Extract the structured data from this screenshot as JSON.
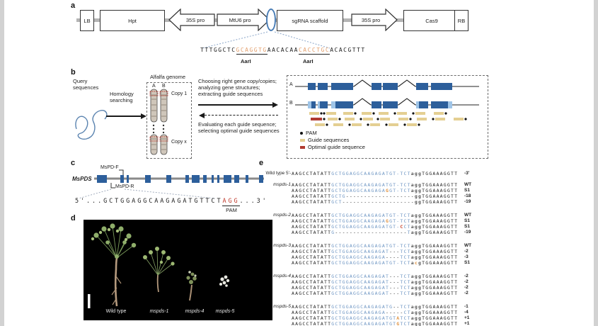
{
  "panel_a": {
    "label": "a",
    "elements": {
      "lb": "LB",
      "hpt": "Hpt",
      "p35s_left": "35S pro",
      "mtu6": "MtU6 pro",
      "sgrna": "sgRNA scaffold",
      "p35s_right": "35S pro",
      "cas9": "Cas9",
      "rb": "RB"
    },
    "sequence": [
      [
        "TTTGGCTC",
        "k"
      ],
      [
        "GCAGGTG",
        "ao",
        true
      ],
      [
        "AACACAA",
        "k"
      ],
      [
        "CACCTGC",
        "ao",
        true
      ],
      [
        "ACACGTTT",
        "k"
      ]
    ],
    "enzymes": [
      "AarI",
      "AarI"
    ]
  },
  "panel_b": {
    "label": "b",
    "query_label": [
      "Query",
      "sequences"
    ],
    "homology_label": [
      "Homology",
      "searching"
    ],
    "genome_title": "Alfalfa genome",
    "chrom_labels": [
      "A",
      "B"
    ],
    "copy1": "Copy 1",
    "copyx": "Copy x",
    "forward_text": [
      "Choosing right gene copy/copies;",
      "analyzing gene structures;",
      "extracting guide sequences"
    ],
    "back_text": [
      "Evaluating each guide sequence;",
      "selecting optimal guide sequences"
    ],
    "gene_labels": [
      "A",
      "B"
    ],
    "legend": [
      "PAM",
      "Guide sequences",
      "Optimal guide sequence"
    ]
  },
  "panel_c": {
    "label": "c",
    "gene_name": "MsPDS",
    "primer_f": "MsPD-F",
    "primer_r": "MsPD-R",
    "sequence": [
      [
        "5'...",
        "k"
      ],
      [
        "GCTGGAGGCAAGAGATGTTCT",
        "k"
      ],
      [
        "AGG",
        "cr",
        true
      ],
      [
        "...3'",
        "k"
      ]
    ],
    "pam_label": "PAM"
  },
  "panel_d": {
    "label": "d",
    "plants": [
      "Wild type",
      "mspds-1",
      "mspds-4",
      "mspds-5"
    ]
  },
  "panel_e": {
    "label": "e",
    "wild_type": {
      "label": "Wild type 5'-",
      "seq": [
        [
          "AAGCCTATATT",
          "k"
        ],
        [
          "GCTGGAGGCAAGAGATGT-TCT",
          "g"
        ],
        [
          "agg",
          "p"
        ],
        [
          "TGGAAAGGTT",
          "k"
        ]
      ],
      "tag": "-3'"
    },
    "groups": [
      {
        "name": "mspds-1",
        "rows": [
          {
            "seq": [
              [
                "AAGCCTATATT",
                "k"
              ],
              [
                "GCTGGAGGCAAGAGATGT-TCT",
                "g"
              ],
              [
                "agg",
                "p"
              ],
              [
                "TGGAAAGGTT",
                "k"
              ]
            ],
            "tag": "WT"
          },
          {
            "seq": [
              [
                "AAGCCTATATT",
                "k"
              ],
              [
                "GCTGGAGGCAAGAGA",
                "g"
              ],
              [
                "G",
                "o"
              ],
              [
                "GT-TCT",
                "g"
              ],
              [
                "agg",
                "p"
              ],
              [
                "TGGAAAGGTT",
                "k"
              ]
            ],
            "tag": "S1"
          },
          {
            "seq": [
              [
                "AAGCCTATATT",
                "k"
              ],
              [
                "GCTG",
                "g"
              ],
              [
                "-------------------",
                "d"
              ],
              [
                "gg",
                "p"
              ],
              [
                "TGGAAAGGTT",
                "k"
              ]
            ],
            "tag": "-18"
          },
          {
            "seq": [
              [
                "AAGCCTATATT",
                "k"
              ],
              [
                "GCT",
                "g"
              ],
              [
                "--------------------",
                "d"
              ],
              [
                "gg",
                "p"
              ],
              [
                "TGGAAAGGTT",
                "k"
              ]
            ],
            "tag": "-19"
          }
        ]
      },
      {
        "name": "mspds-2",
        "rows": [
          {
            "seq": [
              [
                "AAGCCTATATT",
                "k"
              ],
              [
                "GCTGGAGGCAAGAGATGT-TCT",
                "g"
              ],
              [
                "agg",
                "p"
              ],
              [
                "TGGAAAGGTT",
                "k"
              ]
            ],
            "tag": "WT"
          },
          {
            "seq": [
              [
                "AAGCCTATATT",
                "k"
              ],
              [
                "GCTGGAGGCAAGAGA",
                "g"
              ],
              [
                "G",
                "o"
              ],
              [
                "GT-TCT",
                "g"
              ],
              [
                "agg",
                "p"
              ],
              [
                "TGGAAAGGTT",
                "k"
              ]
            ],
            "tag": "S1"
          },
          {
            "seq": [
              [
                "AAGCCTATATT",
                "k"
              ],
              [
                "GCTGGAGGCAAGAGATGT-",
                "g"
              ],
              [
                "C",
                "r"
              ],
              [
                "CT",
                "g"
              ],
              [
                "agg",
                "p"
              ],
              [
                "TGGAAAGGTT",
                "k"
              ]
            ],
            "tag": "S1"
          },
          {
            "seq": [
              [
                "AAGCCTATATT",
                "k"
              ],
              [
                "G",
                "g"
              ],
              [
                "--------------------",
                "d"
              ],
              [
                "T",
                "g"
              ],
              [
                "agg",
                "p"
              ],
              [
                "TGGAAAGGTT",
                "k"
              ]
            ],
            "tag": "-19"
          }
        ]
      },
      {
        "name": "mspds-3",
        "rows": [
          {
            "seq": [
              [
                "AAGCCTATATT",
                "k"
              ],
              [
                "GCTGGAGGCAAGAGATGT-TCT",
                "g"
              ],
              [
                "agg",
                "p"
              ],
              [
                "TGGAAAGGTT",
                "k"
              ]
            ],
            "tag": "WT"
          },
          {
            "seq": [
              [
                "AAGCCTATATT",
                "k"
              ],
              [
                "GCTGGAGGCAAGAGAT",
                "g"
              ],
              [
                "---",
                "d"
              ],
              [
                "TCT",
                "g"
              ],
              [
                "agg",
                "p"
              ],
              [
                "TGGAAAGGTT",
                "k"
              ]
            ],
            "tag": "-2"
          },
          {
            "seq": [
              [
                "AAGCCTATATT",
                "k"
              ],
              [
                "GCTGGAGGCAAGAGA",
                "g"
              ],
              [
                "----",
                "d"
              ],
              [
                "TCT",
                "g"
              ],
              [
                "agg",
                "p"
              ],
              [
                "TGGAAAGGTT",
                "k"
              ]
            ],
            "tag": "-3"
          },
          {
            "seq": [
              [
                "AAGCCTATATT",
                "k"
              ],
              [
                "GCTGGAGGCAAGAGATGT-TCT",
                "g"
              ],
              [
                "a",
                "p"
              ],
              [
                "c",
                "o"
              ],
              [
                "g",
                "p"
              ],
              [
                "TGGAAAGGTT",
                "k"
              ]
            ],
            "tag": "S1"
          }
        ]
      },
      {
        "name": "mspds-4",
        "rows": [
          {
            "seq": [
              [
                "AAGCCTATATT",
                "k"
              ],
              [
                "GCTGGAGGCAAGAGAT",
                "g"
              ],
              [
                "---",
                "d"
              ],
              [
                "TCT",
                "g"
              ],
              [
                "agg",
                "p"
              ],
              [
                "TGGAAAGGTT",
                "k"
              ]
            ],
            "tag": "-2"
          },
          {
            "seq": [
              [
                "AAGCCTATATT",
                "k"
              ],
              [
                "GCTGGAGGCAAGAGAT",
                "g"
              ],
              [
                "---",
                "d"
              ],
              [
                "TCT",
                "g"
              ],
              [
                "agg",
                "p"
              ],
              [
                "TGGAAAGGTT",
                "k"
              ]
            ],
            "tag": "-2"
          },
          {
            "seq": [
              [
                "AAGCCTATATT",
                "k"
              ],
              [
                "GCTGGAGGCAAGAGAT",
                "g"
              ],
              [
                "---",
                "d"
              ],
              [
                "TCT",
                "g"
              ],
              [
                "agg",
                "p"
              ],
              [
                "TGGAAAGGTT",
                "k"
              ]
            ],
            "tag": "-2"
          },
          {
            "seq": [
              [
                "AAGCCTATATT",
                "k"
              ],
              [
                "GCTGGAGGCAAGAGAT",
                "g"
              ],
              [
                "---",
                "d"
              ],
              [
                "TCT",
                "g"
              ],
              [
                "agg",
                "p"
              ],
              [
                "TGGAAAGGTT",
                "k"
              ]
            ],
            "tag": "-2"
          }
        ]
      },
      {
        "name": "mspds-5",
        "rows": [
          {
            "seq": [
              [
                "AAGCCTATATT",
                "k"
              ],
              [
                "GCTGGAGGCAAGAGATG",
                "g"
              ],
              [
                "--",
                "d"
              ],
              [
                "TCT",
                "g"
              ],
              [
                "agg",
                "p"
              ],
              [
                "TGGAAAGGTT",
                "k"
              ]
            ],
            "tag": "-1"
          },
          {
            "seq": [
              [
                "AAGCCTATATT",
                "k"
              ],
              [
                "GCTGGAGGCAAGAGA",
                "g"
              ],
              [
                "-----",
                "d"
              ],
              [
                "CT",
                "g"
              ],
              [
                "agg",
                "p"
              ],
              [
                "TGGAAAGGTT",
                "k"
              ]
            ],
            "tag": "-4"
          },
          {
            "seq": [
              [
                "AAGCCTATATT",
                "k"
              ],
              [
                "GCTGGAGGCAAGAGATGT",
                "g"
              ],
              [
                "A",
                "o"
              ],
              [
                "TCT",
                "g"
              ],
              [
                "agg",
                "p"
              ],
              [
                "TGGAAAGGTT",
                "k"
              ]
            ],
            "tag": "+1"
          },
          {
            "seq": [
              [
                "AAGCCTATATT",
                "k"
              ],
              [
                "GCTGGAGGCAAGAGATGT",
                "g"
              ],
              [
                "G",
                "o"
              ],
              [
                "TCT",
                "g"
              ],
              [
                "agg",
                "p"
              ],
              [
                "TGGAAAGGTT",
                "k"
              ]
            ],
            "tag": "+1"
          }
        ]
      }
    ]
  },
  "colors": {
    "exon_blue": "#2d5f9b",
    "exon_light": "#9fc5e8",
    "guide_yellow": "#e4cf92",
    "optimal_red": "#b03a30",
    "seq_blue": "#6d95c3",
    "highlight_orange": "#e0923f",
    "highlight_red": "#c9452c",
    "pam_gray": "#555555"
  }
}
